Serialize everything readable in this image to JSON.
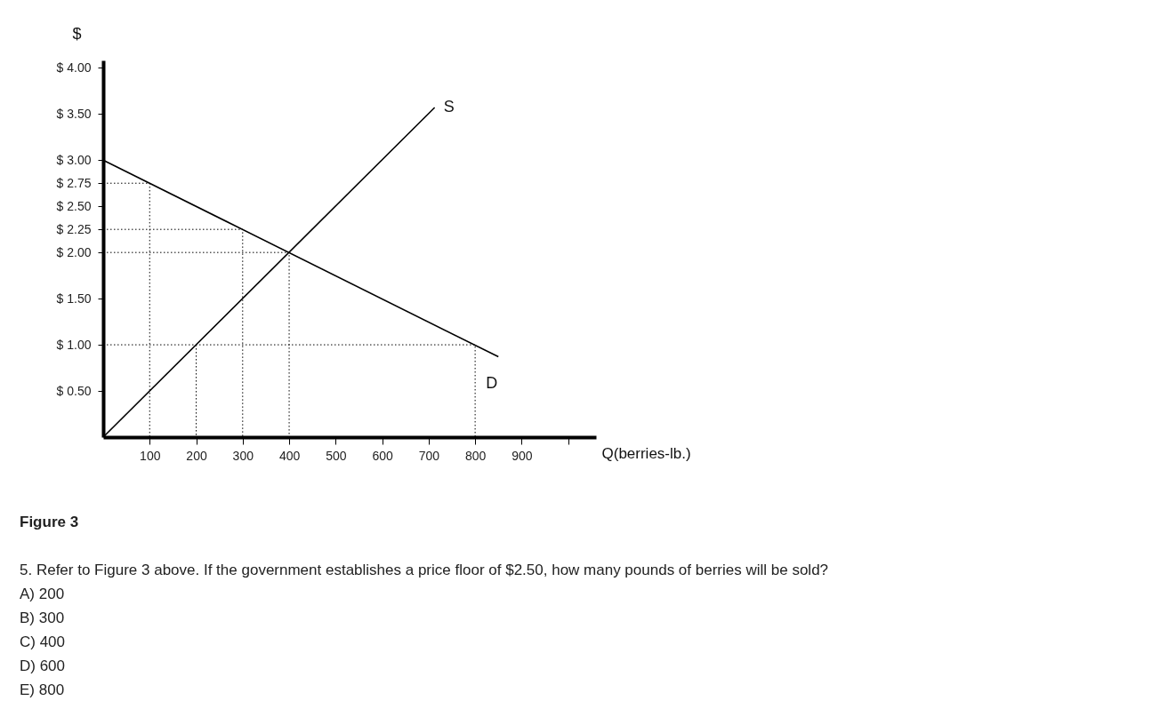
{
  "chart_data": {
    "type": "line",
    "xlabel": "Q(berries-lb.)",
    "ylabel": "$",
    "xlim": [
      0,
      1060
    ],
    "ylim": [
      0,
      4.08
    ],
    "xticks": [
      100,
      200,
      300,
      400,
      500,
      600,
      700,
      800,
      900,
      {
        "value": 1000,
        "label": null
      }
    ],
    "yticks": [
      {
        "value": 0.5,
        "label": "$ 0.50"
      },
      {
        "value": 1,
        "label": "$ 1.00"
      },
      {
        "value": 1.5,
        "label": "$ 1.50"
      },
      {
        "value": 2,
        "label": "$ 2.00"
      },
      {
        "value": 2.25,
        "label": "$ 2.25"
      },
      {
        "value": 2.5,
        "label": "$ 2.50"
      },
      {
        "value": 2.75,
        "label": "$ 2.75"
      },
      {
        "value": 3,
        "label": "$ 3.00"
      },
      {
        "value": 3.5,
        "label": "$ 3.50"
      },
      {
        "value": 4,
        "label": "$ 4.00"
      }
    ],
    "grid": false,
    "series": [
      {
        "name": "S",
        "color": "#000000",
        "x": [
          0,
          713
        ],
        "values": [
          0,
          3.57
        ]
      },
      {
        "name": "D",
        "color": "#000000",
        "x": [
          0,
          850
        ],
        "values": [
          3,
          0.87
        ]
      },
      {
        "color": "#000000",
        "line_style": "dotted",
        "x": [
          0,
          100,
          100
        ],
        "values": [
          2.75,
          2.75,
          0
        ]
      },
      {
        "color": "#000000",
        "line_style": "dotted",
        "x": [
          0,
          300,
          300
        ],
        "values": [
          2.25,
          2.25,
          0
        ]
      },
      {
        "color": "#000000",
        "line_style": "dotted",
        "x": [
          0,
          400,
          400
        ],
        "values": [
          2,
          2,
          0
        ]
      },
      {
        "color": "#000000",
        "line_style": "dotted",
        "x": [
          0,
          800,
          800
        ],
        "values": [
          1,
          1,
          0
        ]
      },
      {
        "color": "#000000",
        "line_style": "dotted",
        "x": [
          200,
          200
        ],
        "values": [
          1,
          0
        ]
      }
    ],
    "annotations": [
      "Figure 3",
      "5. Refer to Figure 3 above.  If the government establishes a price floor of $2.50, how many pounds of berries will be sold?",
      "A) 200",
      "B) 300",
      "C) 400",
      "D) 600",
      "E) 800"
    ]
  }
}
